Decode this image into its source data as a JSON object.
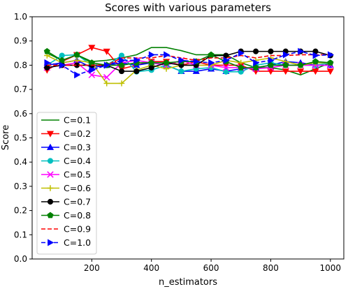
{
  "chart_data": {
    "type": "line",
    "title": "Scores with various parameters",
    "xlabel": "n_estimators",
    "ylabel": "Score",
    "xlim": [
      0,
      1045
    ],
    "ylim": [
      0.0,
      1.0
    ],
    "xticks": [
      200,
      400,
      600,
      800,
      1000
    ],
    "yticks": [
      0.0,
      0.1,
      0.2,
      0.3,
      0.4,
      0.5,
      0.6,
      0.7,
      0.8,
      0.9,
      1.0
    ],
    "grid": false,
    "legend_position": "lower-left",
    "x": [
      50,
      100,
      150,
      200,
      250,
      300,
      350,
      400,
      450,
      500,
      550,
      600,
      650,
      700,
      750,
      800,
      850,
      900,
      950,
      1000
    ],
    "series": [
      {
        "name": "C=0.1",
        "color": "#008000",
        "marker": "none",
        "dash": "solid",
        "values": [
          0.85,
          0.82,
          0.843,
          0.815,
          0.82,
          0.83,
          0.843,
          0.873,
          0.873,
          0.86,
          0.843,
          0.843,
          0.843,
          0.81,
          0.79,
          0.79,
          0.78,
          0.76,
          0.785,
          0.81
        ]
      },
      {
        "name": "C=0.2",
        "color": "#ff0000",
        "marker": "triangle-down",
        "dash": "solid",
        "values": [
          0.78,
          0.815,
          0.843,
          0.873,
          0.857,
          0.785,
          0.8,
          0.815,
          0.815,
          0.8,
          0.815,
          0.8,
          0.8,
          0.8,
          0.775,
          0.775,
          0.775,
          0.775,
          0.775,
          0.775
        ]
      },
      {
        "name": "C=0.3",
        "color": "#0000ff",
        "marker": "triangle-up",
        "dash": "solid",
        "values": [
          0.8,
          0.81,
          0.82,
          0.79,
          0.8,
          0.81,
          0.8,
          0.81,
          0.8,
          0.775,
          0.775,
          0.785,
          0.775,
          0.785,
          0.79,
          0.8,
          0.815,
          0.81,
          0.8,
          0.8
        ]
      },
      {
        "name": "C=0.4",
        "color": "#00bfbf",
        "marker": "circle",
        "dash": "solid",
        "values": [
          0.8,
          0.84,
          0.843,
          0.8,
          0.8,
          0.84,
          0.773,
          0.78,
          0.8,
          0.775,
          0.785,
          0.79,
          0.773,
          0.773,
          0.8,
          0.81,
          0.8,
          0.8,
          0.8,
          0.81
        ]
      },
      {
        "name": "C=0.5",
        "color": "#ff00ff",
        "marker": "x",
        "dash": "solid",
        "values": [
          0.79,
          0.8,
          0.81,
          0.76,
          0.75,
          0.81,
          0.82,
          0.81,
          0.8,
          0.82,
          0.8,
          0.8,
          0.79,
          0.79,
          0.785,
          0.79,
          0.8,
          0.8,
          0.8,
          0.8
        ]
      },
      {
        "name": "C=0.6",
        "color": "#bfbf00",
        "marker": "plus",
        "dash": "solid",
        "values": [
          0.84,
          0.81,
          0.82,
          0.81,
          0.725,
          0.725,
          0.78,
          0.8,
          0.785,
          0.8,
          0.8,
          0.8,
          0.82,
          0.81,
          0.82,
          0.83,
          0.815,
          0.8,
          0.81,
          0.81
        ]
      },
      {
        "name": "C=0.7",
        "color": "#000000",
        "marker": "circle",
        "dash": "solid",
        "values": [
          0.79,
          0.8,
          0.8,
          0.8,
          0.8,
          0.775,
          0.775,
          0.79,
          0.81,
          0.8,
          0.8,
          0.84,
          0.84,
          0.857,
          0.857,
          0.857,
          0.857,
          0.857,
          0.857,
          0.84
        ]
      },
      {
        "name": "C=0.8",
        "color": "#008000",
        "marker": "pentagon",
        "dash": "solid",
        "values": [
          0.857,
          0.82,
          0.843,
          0.81,
          0.8,
          0.8,
          0.81,
          0.81,
          0.81,
          0.815,
          0.815,
          0.843,
          0.815,
          0.79,
          0.79,
          0.8,
          0.8,
          0.8,
          0.815,
          0.81
        ]
      },
      {
        "name": "C=0.9",
        "color": "#ff0000",
        "marker": "none",
        "dash": "dashed",
        "values": [
          0.8,
          0.8,
          0.8,
          0.8,
          0.8,
          0.83,
          0.83,
          0.83,
          0.84,
          0.83,
          0.82,
          0.83,
          0.83,
          0.84,
          0.83,
          0.84,
          0.84,
          0.843,
          0.843,
          0.843
        ]
      },
      {
        "name": "C=1.0",
        "color": "#0000ff",
        "marker": "triangle-right",
        "dash": "dashed",
        "values": [
          0.81,
          0.8,
          0.76,
          0.78,
          0.8,
          0.82,
          0.82,
          0.843,
          0.843,
          0.82,
          0.815,
          0.81,
          0.82,
          0.85,
          0.81,
          0.82,
          0.843,
          0.857,
          0.84,
          0.843
        ]
      }
    ]
  }
}
